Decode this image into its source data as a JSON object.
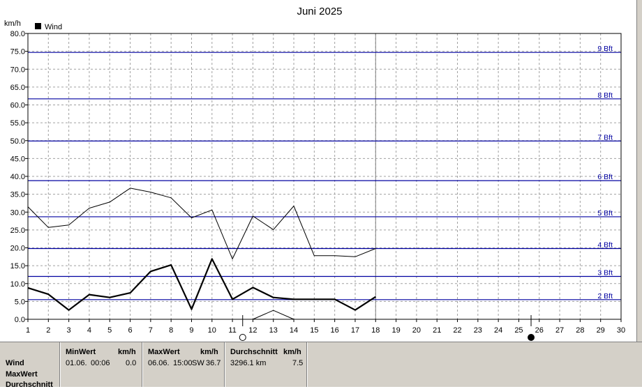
{
  "chart_data": {
    "type": "line",
    "title": "Juni 2025",
    "ylabel": "km/h",
    "ylim": [
      0,
      80
    ],
    "xlim": [
      1,
      30
    ],
    "grid": true,
    "legend": {
      "placement": "top-left",
      "entries": [
        {
          "label": "Wind",
          "color": "#000000"
        }
      ]
    },
    "x_ticks": [
      1,
      2,
      3,
      4,
      5,
      6,
      7,
      8,
      9,
      10,
      11,
      12,
      13,
      14,
      15,
      16,
      17,
      18,
      19,
      20,
      21,
      22,
      23,
      24,
      25,
      26,
      27,
      28,
      29,
      30
    ],
    "y_ticks": [
      "0.0",
      "5.0",
      "10.0",
      "15.0",
      "20.0",
      "25.0",
      "30.0",
      "35.0",
      "40.0",
      "45.0",
      "50.0",
      "55.0",
      "60.0",
      "65.0",
      "70.0",
      "75.0",
      "80.0"
    ],
    "beaufort_lines": [
      {
        "label": "2 Bft",
        "value": 5.5
      },
      {
        "label": "3 Bft",
        "value": 12.0
      },
      {
        "label": "4 Bft",
        "value": 19.8
      },
      {
        "label": "5 Bft",
        "value": 28.7
      },
      {
        "label": "6 Bft",
        "value": 38.8
      },
      {
        "label": "7 Bft",
        "value": 49.9
      },
      {
        "label": "8 Bft",
        "value": 61.7
      },
      {
        "label": "9 Bft",
        "value": 74.7
      }
    ],
    "series": [
      {
        "key": "max",
        "style": "thin",
        "color": "#000000",
        "x": [
          1,
          2,
          3,
          4,
          5,
          6,
          7,
          8,
          9,
          10,
          11,
          12,
          13,
          14,
          15,
          16,
          17,
          18
        ],
        "values": [
          31.5,
          25.7,
          26.4,
          31.1,
          32.8,
          36.7,
          35.6,
          34.0,
          28.4,
          30.6,
          16.9,
          28.9,
          25.1,
          31.7,
          17.8,
          17.8,
          17.5,
          19.8
        ]
      },
      {
        "key": "avg",
        "style": "bold",
        "color": "#000000",
        "name": "Wind",
        "x": [
          1,
          2,
          3,
          4,
          5,
          6,
          7,
          8,
          9,
          10,
          11,
          12,
          13,
          14,
          15,
          16,
          17,
          18
        ],
        "values": [
          8.8,
          7.0,
          2.6,
          6.9,
          6.1,
          7.4,
          13.4,
          15.2,
          2.8,
          16.9,
          5.6,
          8.9,
          6.1,
          5.6,
          5.6,
          5.6,
          2.6,
          6.3
        ]
      },
      {
        "key": "min",
        "style": "thin",
        "color": "#000000",
        "x": [
          12,
          13,
          14
        ],
        "values": [
          0.0,
          2.5,
          0.0
        ]
      }
    ],
    "current_day": 18,
    "moon_phases": [
      {
        "type": "full",
        "day": 11.5
      },
      {
        "type": "new",
        "day": 25.6
      }
    ],
    "colors": {
      "beaufort_line": "#0000a0",
      "beaufort_label": "#0000a0",
      "grid": "#a0a0a0",
      "axis": "#000000"
    }
  },
  "stats": {
    "row_labels": [
      "Wind",
      "MaxWert",
      "Durchschnitt"
    ],
    "min": {
      "header": "MinWert",
      "unit": "km/h",
      "date": "01.06.",
      "time": "00:06",
      "value": "0.0"
    },
    "max": {
      "header": "MaxWert",
      "unit": "km/h",
      "date": "06.06.",
      "time": "15:00",
      "direction": "SW",
      "value": "36.7"
    },
    "avg": {
      "header": "Durchschnitt",
      "unit": "km/h",
      "distance": "3296.1 km",
      "value": "7.5"
    }
  }
}
